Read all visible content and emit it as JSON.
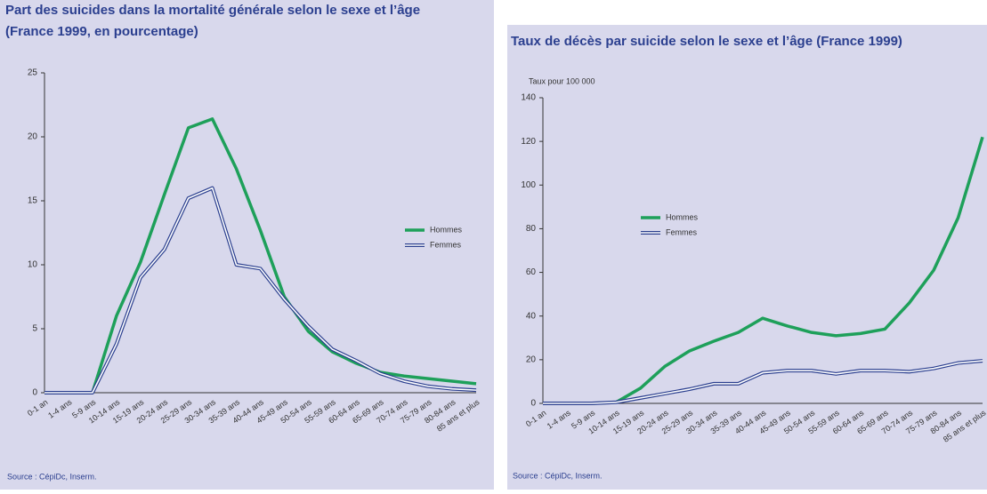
{
  "chart_data": [
    {
      "type": "line",
      "title": "Part des suicides dans la mortalité générale selon le sexe et l’âge",
      "subtitle": "(France 1999, en pourcentage)",
      "source": "Source : CépiDc, Inserm.",
      "categories": [
        "0-1 an",
        "1-4 ans",
        "5-9 ans",
        "10-14 ans",
        "15-19 ans",
        "20-24 ans",
        "25-29 ans",
        "30-34 ans",
        "35-39 ans",
        "40-44 ans",
        "45-49 ans",
        "50-54 ans",
        "55-59 ans",
        "60-64 ans",
        "65-69 ans",
        "70-74 ans",
        "75-79 ans",
        "80-84 ans",
        "85 ans et plus"
      ],
      "series": [
        {
          "name": "Hommes",
          "color": "#1ea05a",
          "values": [
            0,
            0,
            0,
            6,
            10.2,
            15.5,
            20.7,
            21.4,
            17.5,
            12.7,
            7.5,
            4.8,
            3.2,
            2.3,
            1.6,
            1.3,
            1.1,
            0.9,
            0.7
          ]
        },
        {
          "name": "Femmes",
          "color": "#2b3f8f",
          "values": [
            0,
            0,
            0,
            3.8,
            9,
            11.2,
            15.2,
            16,
            10,
            9.7,
            7.3,
            5.2,
            3.4,
            2.5,
            1.5,
            0.9,
            0.5,
            0.3,
            0.2
          ]
        }
      ],
      "ylim": [
        0,
        25
      ],
      "yticks": [
        0,
        5,
        10,
        15,
        20,
        25
      ],
      "legend": "right"
    },
    {
      "type": "line",
      "title": "Taux de décès par suicide selon le sexe et l’âge (France 1999)",
      "ylabel": "Taux pour 100 000",
      "source": "Source : CépiDc, Inserm.",
      "categories": [
        "0-1 an",
        "1-4 ans",
        "5-9 ans",
        "10-14 ans",
        "15-19 ans",
        "20-24 ans",
        "25-29 ans",
        "30-34 ans",
        "35-39 ans",
        "40-44 ans",
        "45-49 ans",
        "50-54 ans",
        "55-59 ans",
        "60-64 ans",
        "65-69 ans",
        "70-74 ans",
        "75-79 ans",
        "80-84 ans",
        "85 ans et plus"
      ],
      "series": [
        {
          "name": "Hommes",
          "color": "#1ea05a",
          "values": [
            0,
            0,
            0,
            0.5,
            7,
            17,
            24,
            28.5,
            32.5,
            39,
            35.5,
            32.5,
            31,
            32,
            34,
            46,
            61,
            85,
            122
          ]
        },
        {
          "name": "Femmes",
          "color": "#2b3f8f",
          "values": [
            0,
            0,
            0,
            0.5,
            2.5,
            4.5,
            6.5,
            9,
            9,
            14,
            15,
            15,
            13.5,
            15,
            15,
            14.5,
            16,
            18.5,
            19.5
          ]
        }
      ],
      "ylim": [
        0,
        140
      ],
      "yticks": [
        0,
        20,
        40,
        60,
        80,
        100,
        120,
        140
      ],
      "legend": "left"
    }
  ]
}
